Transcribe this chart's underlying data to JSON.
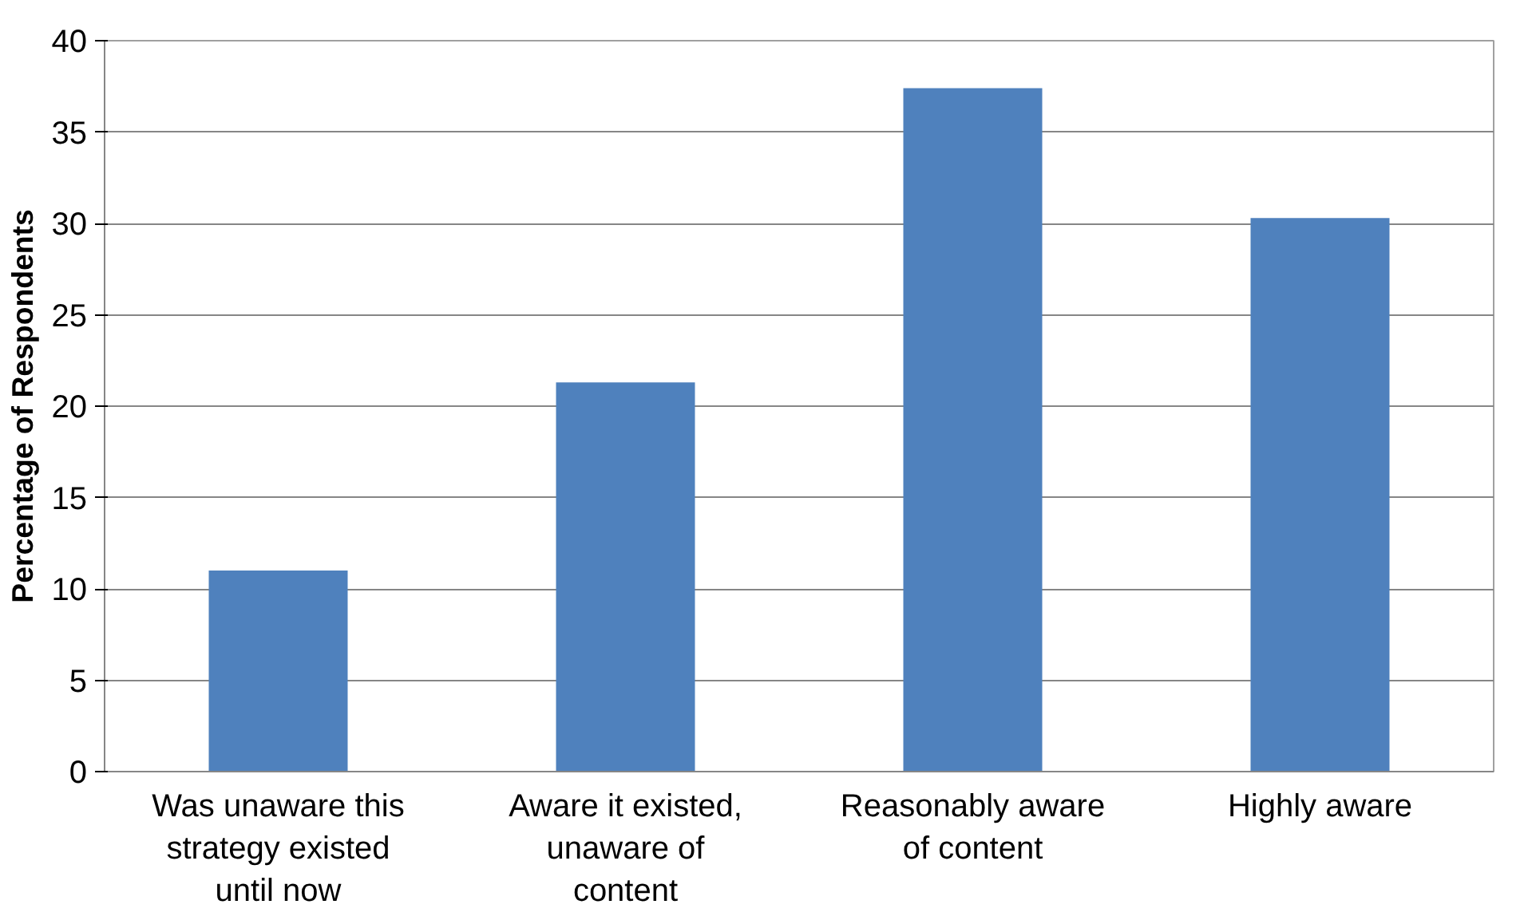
{
  "chart_data": {
    "type": "bar",
    "ylabel": "Percentage of Respondents",
    "categories": [
      "Was unaware this strategy existed until now",
      "Aware it existed, unaware of content",
      "Reasonably aware of content",
      "Highly aware"
    ],
    "values": [
      11.0,
      21.3,
      37.4,
      30.3
    ],
    "color": "#4f81bd",
    "ylim": [
      0,
      40
    ],
    "yticks": [
      0,
      5,
      10,
      15,
      20,
      25,
      30,
      35,
      40
    ],
    "grid": "y"
  }
}
